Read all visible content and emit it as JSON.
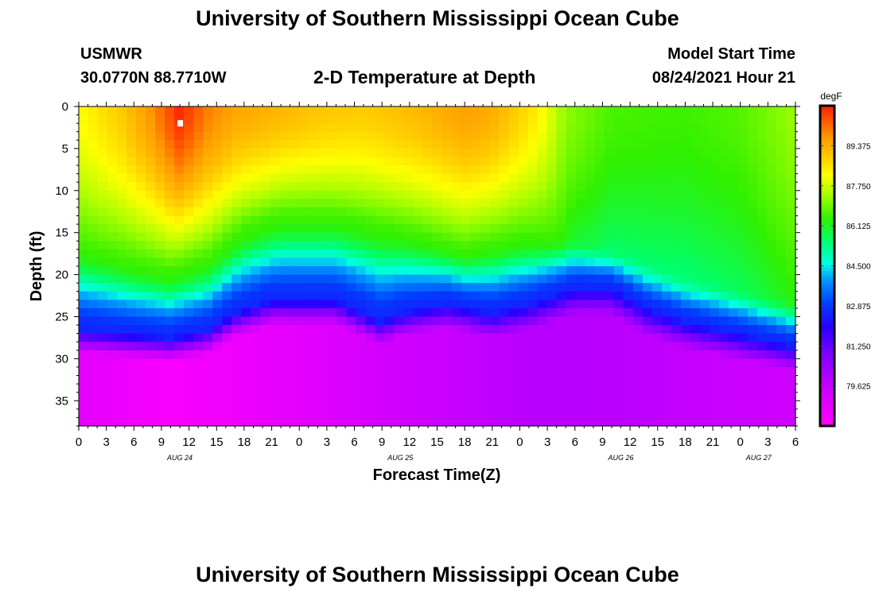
{
  "page": {
    "title_top": "University of Southern Mississippi Ocean Cube",
    "title_bottom": "University of Southern Mississippi Ocean Cube",
    "station": "USMWR",
    "coords": "30.0770N  88.7710W",
    "subtitle": "2-D Temperature at Depth",
    "model_start_label": "Model Start Time",
    "model_start_value": "08/24/2021 Hour 21"
  },
  "chart_data": {
    "type": "heatmap",
    "title": "2-D Temperature at Depth",
    "xlabel": "Forecast Time(Z)",
    "ylabel": "Depth (ft)",
    "colorbar_unit": "degF",
    "xlim": [
      0,
      78
    ],
    "ylim": [
      0,
      38
    ],
    "x_tick_values": [
      0,
      3,
      6,
      9,
      12,
      15,
      18,
      21,
      24,
      27,
      30,
      33,
      36,
      39,
      42,
      45,
      48,
      51,
      54,
      57,
      60,
      63,
      66,
      69,
      72,
      75,
      78
    ],
    "x_tick_labels": [
      "0",
      "3",
      "6",
      "9",
      "12",
      "15",
      "18",
      "21",
      "0",
      "3",
      "6",
      "9",
      "12",
      "15",
      "18",
      "21",
      "0",
      "3",
      "6",
      "9",
      "12",
      "15",
      "18",
      "21",
      "0",
      "3",
      "6"
    ],
    "date_labels": [
      {
        "label": "AUG 24",
        "x": 11
      },
      {
        "label": "AUG 25",
        "x": 35
      },
      {
        "label": "AUG 26",
        "x": 59
      },
      {
        "label": "AUG 27",
        "x": 74
      }
    ],
    "y_tick_values": [
      0,
      5,
      10,
      15,
      20,
      25,
      30,
      35
    ],
    "y_tick_labels": [
      "0",
      "5",
      "10",
      "15",
      "20",
      "25",
      "30",
      "35"
    ],
    "colorbar_range": [
      78,
      91
    ],
    "colorbar_ticks": [
      {
        "value": 79.625,
        "label": "79.625"
      },
      {
        "value": 81.25,
        "label": "81.250"
      },
      {
        "value": 82.875,
        "label": "82.875"
      },
      {
        "value": 84.5,
        "label": "84.500"
      },
      {
        "value": 86.125,
        "label": "86.125"
      },
      {
        "value": 87.75,
        "label": "87.750"
      },
      {
        "value": 89.375,
        "label": "89.375"
      }
    ],
    "colormap": [
      {
        "v": 78.0,
        "c": "#ff00ff"
      },
      {
        "v": 79.6,
        "c": "#c800ff"
      },
      {
        "v": 81.0,
        "c": "#7a00ff"
      },
      {
        "v": 82.0,
        "c": "#2800ff"
      },
      {
        "v": 83.0,
        "c": "#0040ff"
      },
      {
        "v": 84.0,
        "c": "#00a0ff"
      },
      {
        "v": 84.6,
        "c": "#00ffe0"
      },
      {
        "v": 85.5,
        "c": "#00ff70"
      },
      {
        "v": 86.4,
        "c": "#30f000"
      },
      {
        "v": 87.5,
        "c": "#b4ff00"
      },
      {
        "v": 88.2,
        "c": "#ffff00"
      },
      {
        "v": 88.9,
        "c": "#ffcc00"
      },
      {
        "v": 89.7,
        "c": "#ff9a00"
      },
      {
        "v": 90.3,
        "c": "#ff6000"
      },
      {
        "v": 91.0,
        "c": "#ff1e00"
      }
    ],
    "surface_temperature": [
      {
        "x": 0,
        "t": 88.2
      },
      {
        "x": 5,
        "t": 89.0
      },
      {
        "x": 8,
        "t": 89.8
      },
      {
        "x": 11,
        "t": 90.9
      },
      {
        "x": 14,
        "t": 90.0
      },
      {
        "x": 17,
        "t": 89.5
      },
      {
        "x": 21,
        "t": 89.3
      },
      {
        "x": 26,
        "t": 89.0
      },
      {
        "x": 31,
        "t": 88.9
      },
      {
        "x": 37,
        "t": 89.2
      },
      {
        "x": 42,
        "t": 89.6
      },
      {
        "x": 45,
        "t": 89.4
      },
      {
        "x": 50,
        "t": 88.4
      },
      {
        "x": 53,
        "t": 87.2
      },
      {
        "x": 58,
        "t": 86.6
      },
      {
        "x": 66,
        "t": 86.5
      },
      {
        "x": 72,
        "t": 86.7
      },
      {
        "x": 78,
        "t": 87.3
      }
    ],
    "upper_layer_base_depth": [
      {
        "x": 0,
        "d": 16.5
      },
      {
        "x": 6,
        "d": 18.5
      },
      {
        "x": 10,
        "d": 19.5
      },
      {
        "x": 14,
        "d": 18.0
      },
      {
        "x": 18,
        "d": 14.5
      },
      {
        "x": 22,
        "d": 13.0
      },
      {
        "x": 28,
        "d": 13.0
      },
      {
        "x": 36,
        "d": 15.0
      },
      {
        "x": 42,
        "d": 17.0
      },
      {
        "x": 48,
        "d": 15.5
      },
      {
        "x": 54,
        "d": 15.5
      },
      {
        "x": 60,
        "d": 17.5
      },
      {
        "x": 66,
        "d": 20.0
      },
      {
        "x": 72,
        "d": 21.5
      },
      {
        "x": 78,
        "d": 23.0
      }
    ],
    "thermocline_depth": [
      {
        "x": 0,
        "d": 26.5
      },
      {
        "x": 5,
        "d": 27.0
      },
      {
        "x": 10,
        "d": 27.5
      },
      {
        "x": 14,
        "d": 26.5
      },
      {
        "x": 17,
        "d": 24.5
      },
      {
        "x": 21,
        "d": 23.0
      },
      {
        "x": 28,
        "d": 23.0
      },
      {
        "x": 33,
        "d": 25.5
      },
      {
        "x": 35,
        "d": 24.5
      },
      {
        "x": 40,
        "d": 23.5
      },
      {
        "x": 45,
        "d": 24.5
      },
      {
        "x": 49,
        "d": 23.5
      },
      {
        "x": 54,
        "d": 21.5
      },
      {
        "x": 58,
        "d": 21.5
      },
      {
        "x": 62,
        "d": 24.0
      },
      {
        "x": 66,
        "d": 25.5
      },
      {
        "x": 72,
        "d": 27.0
      },
      {
        "x": 78,
        "d": 28.5
      }
    ],
    "gradient_band_width_ft": [
      {
        "x": 0,
        "w": 2.8
      },
      {
        "x": 20,
        "w": 3.2
      },
      {
        "x": 40,
        "w": 2.8
      },
      {
        "x": 60,
        "w": 3.4
      },
      {
        "x": 78,
        "w": 3.0
      }
    ],
    "bottom_temperature": [
      {
        "x": 0,
        "t": 78.8
      },
      {
        "x": 10,
        "t": 78.2
      },
      {
        "x": 20,
        "t": 78.6
      },
      {
        "x": 30,
        "t": 79.1
      },
      {
        "x": 40,
        "t": 79.6
      },
      {
        "x": 50,
        "t": 79.9
      },
      {
        "x": 60,
        "t": 79.8
      },
      {
        "x": 70,
        "t": 79.6
      },
      {
        "x": 78,
        "t": 79.4
      }
    ],
    "marker": {
      "x": 11,
      "depth": 2,
      "color": "#ffffff"
    }
  }
}
